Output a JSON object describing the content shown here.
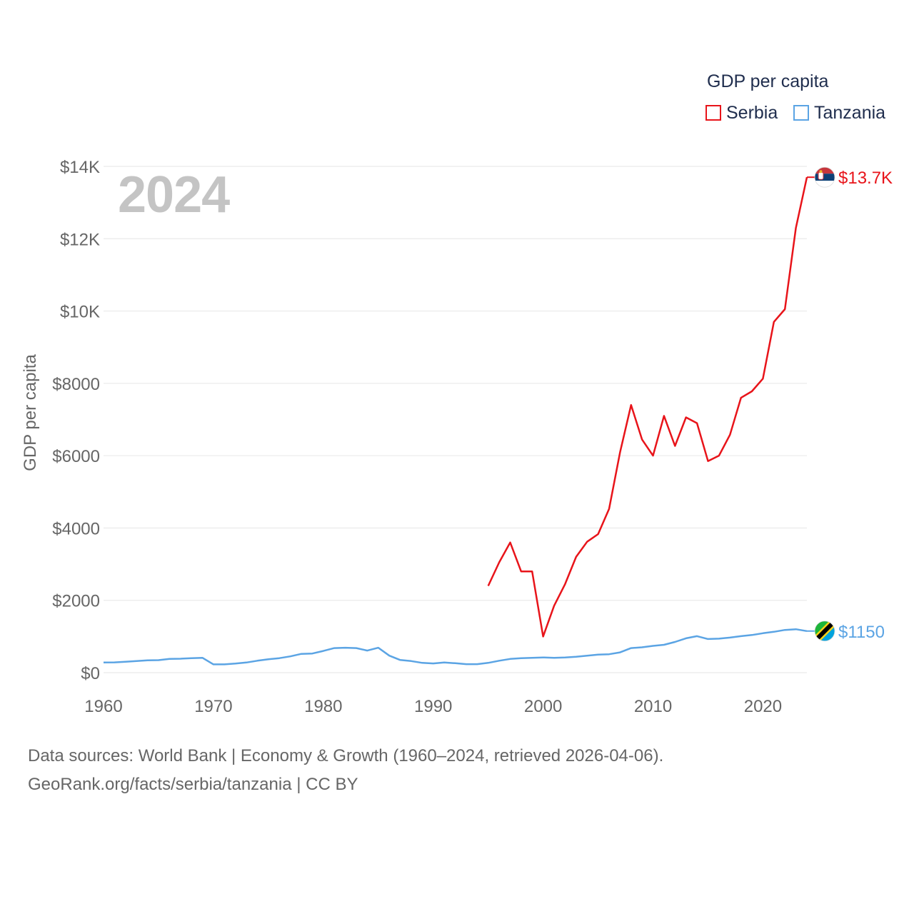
{
  "legend": {
    "title": "GDP per capita",
    "items": [
      {
        "label": "Serbia",
        "color": "#e8141a"
      },
      {
        "label": "Tanzania",
        "color": "#5ba4e4"
      }
    ]
  },
  "year_label": "2024",
  "footer": {
    "line1": "Data sources: World Bank | Economy & Growth (1960–2024, retrieved 2026-04-06).",
    "line2": "GeoRank.org/facts/serbia/tanzania | CC BY"
  },
  "chart_data": {
    "type": "line",
    "title": "GDP per capita",
    "xlabel": "",
    "ylabel": "GDP per capita",
    "xlim": [
      1960,
      2024
    ],
    "ylim": [
      0,
      14000
    ],
    "x_ticks": [
      1960,
      1970,
      1980,
      1990,
      2000,
      2010,
      2020
    ],
    "x_tick_labels": [
      "1960",
      "1970",
      "1980",
      "1990",
      "2000",
      "2010",
      "2020"
    ],
    "y_ticks": [
      0,
      2000,
      4000,
      6000,
      8000,
      10000,
      12000,
      14000
    ],
    "y_tick_labels": [
      "$0",
      "$2000",
      "$4000",
      "$6000",
      "$8000",
      "$10K",
      "$12K",
      "$14K"
    ],
    "grid": true,
    "series": [
      {
        "name": "Serbia",
        "color": "#e8141a",
        "end_label": "$13.7K",
        "end_icon": "serbia-flag-icon",
        "x": [
          1995,
          1996,
          1997,
          1998,
          1999,
          2000,
          2001,
          2002,
          2003,
          2004,
          2005,
          2006,
          2007,
          2008,
          2009,
          2010,
          2011,
          2012,
          2013,
          2014,
          2015,
          2016,
          2017,
          2018,
          2019,
          2020,
          2021,
          2022,
          2023,
          2024
        ],
        "y": [
          2400,
          3050,
          3600,
          2800,
          2800,
          1000,
          1850,
          2450,
          3200,
          3620,
          3830,
          4530,
          6100,
          7400,
          6450,
          6000,
          7100,
          6270,
          7060,
          6900,
          5850,
          6000,
          6580,
          7600,
          7780,
          8130,
          9700,
          10050,
          12300,
          13700
        ]
      },
      {
        "name": "Tanzania",
        "color": "#5ba4e4",
        "end_label": "$1150",
        "end_icon": "tanzania-flag-icon",
        "x": [
          1960,
          1961,
          1962,
          1963,
          1964,
          1965,
          1966,
          1967,
          1968,
          1969,
          1970,
          1971,
          1972,
          1973,
          1974,
          1975,
          1976,
          1977,
          1978,
          1979,
          1980,
          1981,
          1982,
          1983,
          1984,
          1985,
          1986,
          1987,
          1988,
          1989,
          1990,
          1991,
          1992,
          1993,
          1994,
          1995,
          1996,
          1997,
          1998,
          1999,
          2000,
          2001,
          2002,
          2003,
          2004,
          2005,
          2006,
          2007,
          2008,
          2009,
          2010,
          2011,
          2012,
          2013,
          2014,
          2015,
          2016,
          2017,
          2018,
          2019,
          2020,
          2021,
          2022,
          2023,
          2024
        ],
        "y": [
          280,
          285,
          300,
          320,
          340,
          345,
          380,
          385,
          400,
          410,
          230,
          230,
          250,
          280,
          330,
          370,
          400,
          450,
          520,
          530,
          600,
          680,
          690,
          680,
          610,
          690,
          470,
          350,
          320,
          270,
          255,
          280,
          260,
          235,
          235,
          270,
          330,
          380,
          400,
          410,
          420,
          410,
          420,
          440,
          470,
          500,
          510,
          560,
          680,
          700,
          740,
          770,
          850,
          950,
          1010,
          930,
          940,
          970,
          1010,
          1040,
          1090,
          1130,
          1180,
          1200,
          1150
        ]
      }
    ]
  }
}
